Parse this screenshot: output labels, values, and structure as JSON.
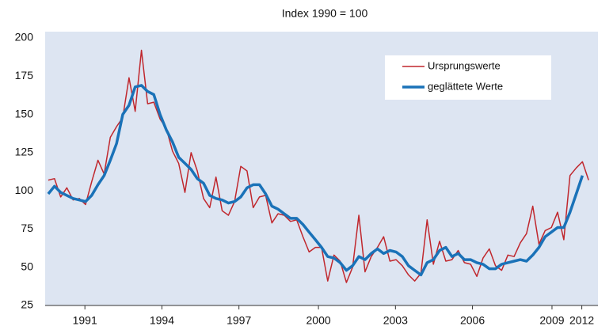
{
  "chart_data": {
    "type": "line",
    "title": "Index 1990 = 100",
    "x": [
      1990.125,
      1990.375,
      1990.625,
      1990.875,
      1991.125,
      1991.375,
      1991.625,
      1991.875,
      1992.125,
      1992.375,
      1992.625,
      1992.875,
      1993.125,
      1993.375,
      1993.625,
      1993.875,
      1994.125,
      1994.375,
      1994.625,
      1994.875,
      1995.125,
      1995.375,
      1995.625,
      1995.875,
      1996.125,
      1996.375,
      1996.625,
      1996.875,
      1997.125,
      1997.375,
      1997.625,
      1997.875,
      1998.125,
      1998.375,
      1998.625,
      1998.875,
      1999.125,
      1999.375,
      1999.625,
      1999.875,
      2000.125,
      2000.375,
      2000.625,
      2000.875,
      2001.125,
      2001.375,
      2001.625,
      2001.875,
      2002.125,
      2002.375,
      2002.625,
      2002.875,
      2003.125,
      2003.375,
      2003.625,
      2003.875,
      2004.125,
      2004.375,
      2004.625,
      2004.875,
      2005.125,
      2005.375,
      2005.625,
      2005.875,
      2006.125,
      2006.375,
      2006.625,
      2006.875,
      2007.125,
      2007.375,
      2007.625,
      2007.875,
      2008.125,
      2008.375,
      2008.625,
      2008.875,
      2009.125,
      2009.375,
      2009.625,
      2009.875,
      2010.125,
      2010.375,
      2010.625,
      2010.875,
      2011.125,
      2011.375,
      2011.625,
      2011.875
    ],
    "series": [
      {
        "name": "Ursprungswerte",
        "color": "#c0272d",
        "width": 1.5,
        "values": [
          107,
          108,
          96,
          102,
          94,
          95,
          91,
          106,
          120,
          111,
          135,
          142,
          148,
          174,
          152,
          192,
          157,
          158,
          147,
          141,
          126,
          118,
          99,
          125,
          113,
          95,
          89,
          109,
          87,
          84,
          93,
          116,
          113,
          89,
          96,
          97,
          79,
          85,
          84,
          80,
          81,
          70,
          60,
          63,
          63,
          41,
          58,
          54,
          40,
          50,
          84,
          47,
          57,
          63,
          70,
          54,
          55,
          51,
          45,
          41,
          46,
          81,
          52,
          67,
          54,
          55,
          61,
          53,
          52,
          44,
          56,
          62,
          51,
          48,
          58,
          57,
          66,
          72,
          90,
          65,
          74,
          76,
          86,
          68,
          110,
          115,
          119,
          107
        ]
      },
      {
        "name": "geglättete Werte",
        "color": "#1a72b8",
        "width": 3.5,
        "values": [
          98,
          103,
          99,
          97,
          95,
          94,
          93,
          97,
          104,
          110,
          120,
          131,
          150,
          156,
          168,
          169,
          165,
          163,
          150,
          140,
          132,
          122,
          118,
          114,
          108,
          105,
          97,
          95,
          94,
          92,
          93,
          96,
          102,
          104,
          104,
          98,
          90,
          88,
          85,
          82,
          82,
          78,
          73,
          68,
          63,
          57,
          56,
          53,
          48,
          51,
          57,
          55,
          59,
          62,
          59,
          61,
          60,
          57,
          51,
          48,
          45,
          53,
          55,
          61,
          63,
          57,
          59,
          55,
          55,
          53,
          52,
          49,
          49,
          52,
          53,
          54,
          55,
          54,
          58,
          63,
          70,
          73,
          76,
          76,
          86,
          98,
          110,
          null
        ]
      }
    ],
    "xlim": [
      1990,
      2012.25
    ],
    "xticks": [
      {
        "value": 1991.6,
        "label": "1991"
      },
      {
        "value": 1994.7,
        "label": "1994"
      },
      {
        "value": 1997.8,
        "label": "1997"
      },
      {
        "value": 2001.0,
        "label": "2000"
      },
      {
        "value": 2004.1,
        "label": "2003"
      },
      {
        "value": 2007.2,
        "label": "2006"
      },
      {
        "value": 2010.4,
        "label": "2009"
      },
      {
        "value": 2011.6,
        "label": "2012"
      }
    ],
    "ylim": [
      25,
      200
    ],
    "yticks": [
      25,
      50,
      75,
      100,
      125,
      150,
      175,
      200
    ],
    "grid": false,
    "legend": "upper right",
    "background": "#dde5f2"
  }
}
